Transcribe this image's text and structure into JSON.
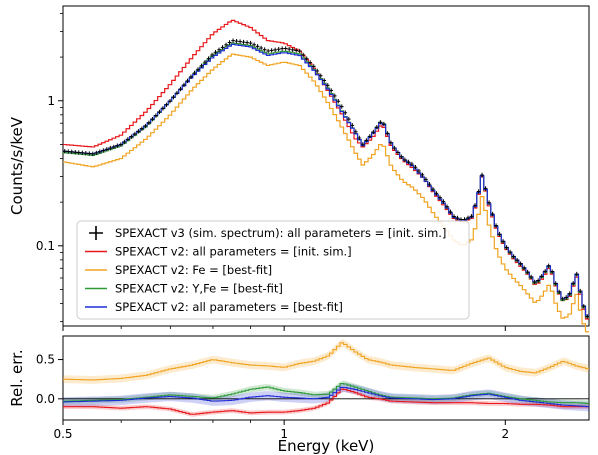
{
  "chart_data": [
    {
      "type": "line",
      "panel": "spectrum",
      "xlabel": "",
      "ylabel": "Counts/s/keV",
      "xscale": "log",
      "yscale": "log",
      "xlim": [
        0.5,
        2.6
      ],
      "ylim": [
        0.028,
        4.5
      ],
      "yticks": [
        {
          "value": 0.1,
          "label": "0.1"
        },
        {
          "value": 1,
          "label": "1"
        }
      ],
      "grid": false,
      "legend_position": "lower-left",
      "x": [
        0.5,
        0.55,
        0.6,
        0.65,
        0.7,
        0.75,
        0.8,
        0.85,
        0.9,
        0.95,
        1.0,
        1.05,
        1.1,
        1.15,
        1.2,
        1.25,
        1.28,
        1.32,
        1.36,
        1.4,
        1.45,
        1.5,
        1.55,
        1.6,
        1.65,
        1.7,
        1.75,
        1.8,
        1.83,
        1.86,
        1.9,
        1.95,
        2.0,
        2.05,
        2.1,
        2.15,
        2.2,
        2.25,
        2.3,
        2.35,
        2.4,
        2.45,
        2.5,
        2.55,
        2.6
      ],
      "series": [
        {
          "name": "SPEXACT v3 (sim. spectrum): all parameters = [init. sim.]",
          "color": "#000000",
          "style": "crosses",
          "values": [
            0.45,
            0.43,
            0.5,
            0.68,
            1.0,
            1.5,
            2.1,
            2.6,
            2.5,
            2.2,
            2.3,
            2.2,
            1.7,
            1.25,
            0.9,
            0.62,
            0.5,
            0.6,
            0.74,
            0.5,
            0.4,
            0.36,
            0.3,
            0.24,
            0.2,
            0.16,
            0.15,
            0.16,
            0.21,
            0.31,
            0.2,
            0.13,
            0.1,
            0.085,
            0.075,
            0.065,
            0.055,
            0.063,
            0.075,
            0.052,
            0.042,
            0.047,
            0.065,
            0.04,
            0.03
          ]
        },
        {
          "name": "SPEXACT v2: all parameters = [init. sim.]",
          "color": "#e8171a",
          "style": "step",
          "values": [
            0.5,
            0.48,
            0.58,
            0.85,
            1.3,
            2.0,
            2.9,
            3.6,
            3.2,
            2.6,
            2.5,
            2.2,
            1.65,
            1.15,
            0.8,
            0.55,
            0.48,
            0.56,
            0.7,
            0.48,
            0.39,
            0.34,
            0.29,
            0.23,
            0.19,
            0.155,
            0.145,
            0.155,
            0.2,
            0.3,
            0.19,
            0.125,
            0.097,
            0.082,
            0.072,
            0.063,
            0.053,
            0.06,
            0.072,
            0.05,
            0.041,
            0.045,
            0.062,
            0.038,
            0.029
          ]
        },
        {
          "name": "SPEXACT v2: Fe = [best-fit]",
          "color": "#f0a320",
          "style": "step",
          "values": [
            0.38,
            0.35,
            0.4,
            0.55,
            0.8,
            1.2,
            1.65,
            2.1,
            2.0,
            1.75,
            1.85,
            1.75,
            1.35,
            0.95,
            0.65,
            0.44,
            0.36,
            0.42,
            0.52,
            0.35,
            0.28,
            0.25,
            0.21,
            0.165,
            0.135,
            0.11,
            0.1,
            0.11,
            0.145,
            0.22,
            0.14,
            0.09,
            0.07,
            0.06,
            0.053,
            0.046,
            0.04,
            0.046,
            0.055,
            0.038,
            0.031,
            0.034,
            0.047,
            0.03,
            0.024
          ]
        },
        {
          "name": "SPEXACT v2: Y,Fe = [best-fit]",
          "color": "#2e9a38",
          "style": "step",
          "values": [
            0.44,
            0.42,
            0.49,
            0.67,
            1.0,
            1.48,
            2.05,
            2.5,
            2.4,
            2.1,
            2.2,
            2.1,
            1.62,
            1.2,
            0.84,
            0.6,
            0.49,
            0.6,
            0.74,
            0.5,
            0.4,
            0.35,
            0.29,
            0.235,
            0.195,
            0.158,
            0.148,
            0.158,
            0.205,
            0.305,
            0.195,
            0.128,
            0.099,
            0.084,
            0.074,
            0.064,
            0.054,
            0.062,
            0.074,
            0.051,
            0.041,
            0.046,
            0.064,
            0.039,
            0.03
          ]
        },
        {
          "name": "SPEXACT v2: all parameters = [best-fit]",
          "color": "#1f2bd6",
          "style": "step",
          "values": [
            0.45,
            0.43,
            0.5,
            0.68,
            1.0,
            1.47,
            2.0,
            2.45,
            2.35,
            2.05,
            2.15,
            2.05,
            1.6,
            1.18,
            0.83,
            0.6,
            0.49,
            0.59,
            0.73,
            0.5,
            0.4,
            0.35,
            0.29,
            0.235,
            0.195,
            0.158,
            0.148,
            0.158,
            0.206,
            0.306,
            0.196,
            0.129,
            0.1,
            0.085,
            0.075,
            0.065,
            0.055,
            0.063,
            0.075,
            0.052,
            0.042,
            0.047,
            0.065,
            0.04,
            0.031
          ]
        }
      ]
    },
    {
      "type": "line",
      "panel": "residuals",
      "xlabel": "Energy (keV)",
      "ylabel": "Rel. err.",
      "xscale": "log",
      "xlim": [
        0.5,
        2.6
      ],
      "ylim": [
        -0.27,
        0.8
      ],
      "xticks": [
        {
          "value": 0.5,
          "label": "0.5"
        },
        {
          "value": 1,
          "label": "1"
        },
        {
          "value": 2,
          "label": "2"
        }
      ],
      "yticks": [
        {
          "value": 0.5,
          "label": "0.5"
        },
        {
          "value": 0.0,
          "label": "0.0"
        }
      ],
      "reference_line": 0,
      "x": [
        0.5,
        0.55,
        0.6,
        0.65,
        0.7,
        0.75,
        0.8,
        0.85,
        0.9,
        0.95,
        1.0,
        1.05,
        1.1,
        1.15,
        1.2,
        1.25,
        1.3,
        1.35,
        1.4,
        1.5,
        1.6,
        1.7,
        1.8,
        1.9,
        2.0,
        2.1,
        2.2,
        2.3,
        2.4,
        2.5,
        2.6
      ],
      "series": [
        {
          "name": "SPEXACT v2: all parameters = [init. sim.]",
          "color": "#e8171a",
          "band": 0.03,
          "values": [
            -0.1,
            -0.1,
            -0.12,
            -0.1,
            -0.13,
            -0.2,
            -0.17,
            -0.15,
            -0.18,
            -0.17,
            -0.17,
            -0.15,
            -0.12,
            -0.05,
            0.13,
            0.08,
            0.02,
            0.0,
            -0.03,
            -0.04,
            -0.05,
            -0.05,
            -0.05,
            -0.06,
            -0.06,
            -0.07,
            -0.07,
            -0.08,
            -0.1,
            -0.1,
            -0.1
          ]
        },
        {
          "name": "SPEXACT v2: Fe = [best-fit]",
          "color": "#f0a320",
          "band": 0.05,
          "values": [
            0.25,
            0.24,
            0.26,
            0.3,
            0.38,
            0.43,
            0.5,
            0.46,
            0.43,
            0.42,
            0.4,
            0.45,
            0.48,
            0.55,
            0.72,
            0.6,
            0.5,
            0.47,
            0.43,
            0.4,
            0.38,
            0.36,
            0.45,
            0.52,
            0.4,
            0.35,
            0.33,
            0.4,
            0.48,
            0.42,
            0.38
          ]
        },
        {
          "name": "SPEXACT v2: Y,Fe = [best-fit]",
          "color": "#2e9a38",
          "band": 0.04,
          "values": [
            -0.03,
            -0.02,
            -0.01,
            0.02,
            0.05,
            0.03,
            0.01,
            0.06,
            0.12,
            0.15,
            0.1,
            0.08,
            0.05,
            0.06,
            0.2,
            0.15,
            0.1,
            0.05,
            0.02,
            0.01,
            0.0,
            0.01,
            0.05,
            0.07,
            0.03,
            0.0,
            -0.02,
            -0.04,
            -0.05,
            -0.05,
            -0.06
          ]
        },
        {
          "name": "SPEXACT v2: all parameters = [best-fit]",
          "color": "#1f2bd6",
          "band": 0.06,
          "values": [
            -0.04,
            -0.03,
            -0.02,
            0.01,
            0.03,
            0.01,
            -0.03,
            -0.02,
            0.02,
            0.04,
            0.02,
            0.01,
            0.0,
            0.02,
            0.15,
            0.12,
            0.08,
            0.04,
            0.01,
            0.0,
            -0.01,
            0.0,
            0.04,
            0.06,
            0.02,
            -0.02,
            -0.04,
            -0.06,
            -0.08,
            -0.09,
            -0.1
          ]
        }
      ]
    }
  ]
}
